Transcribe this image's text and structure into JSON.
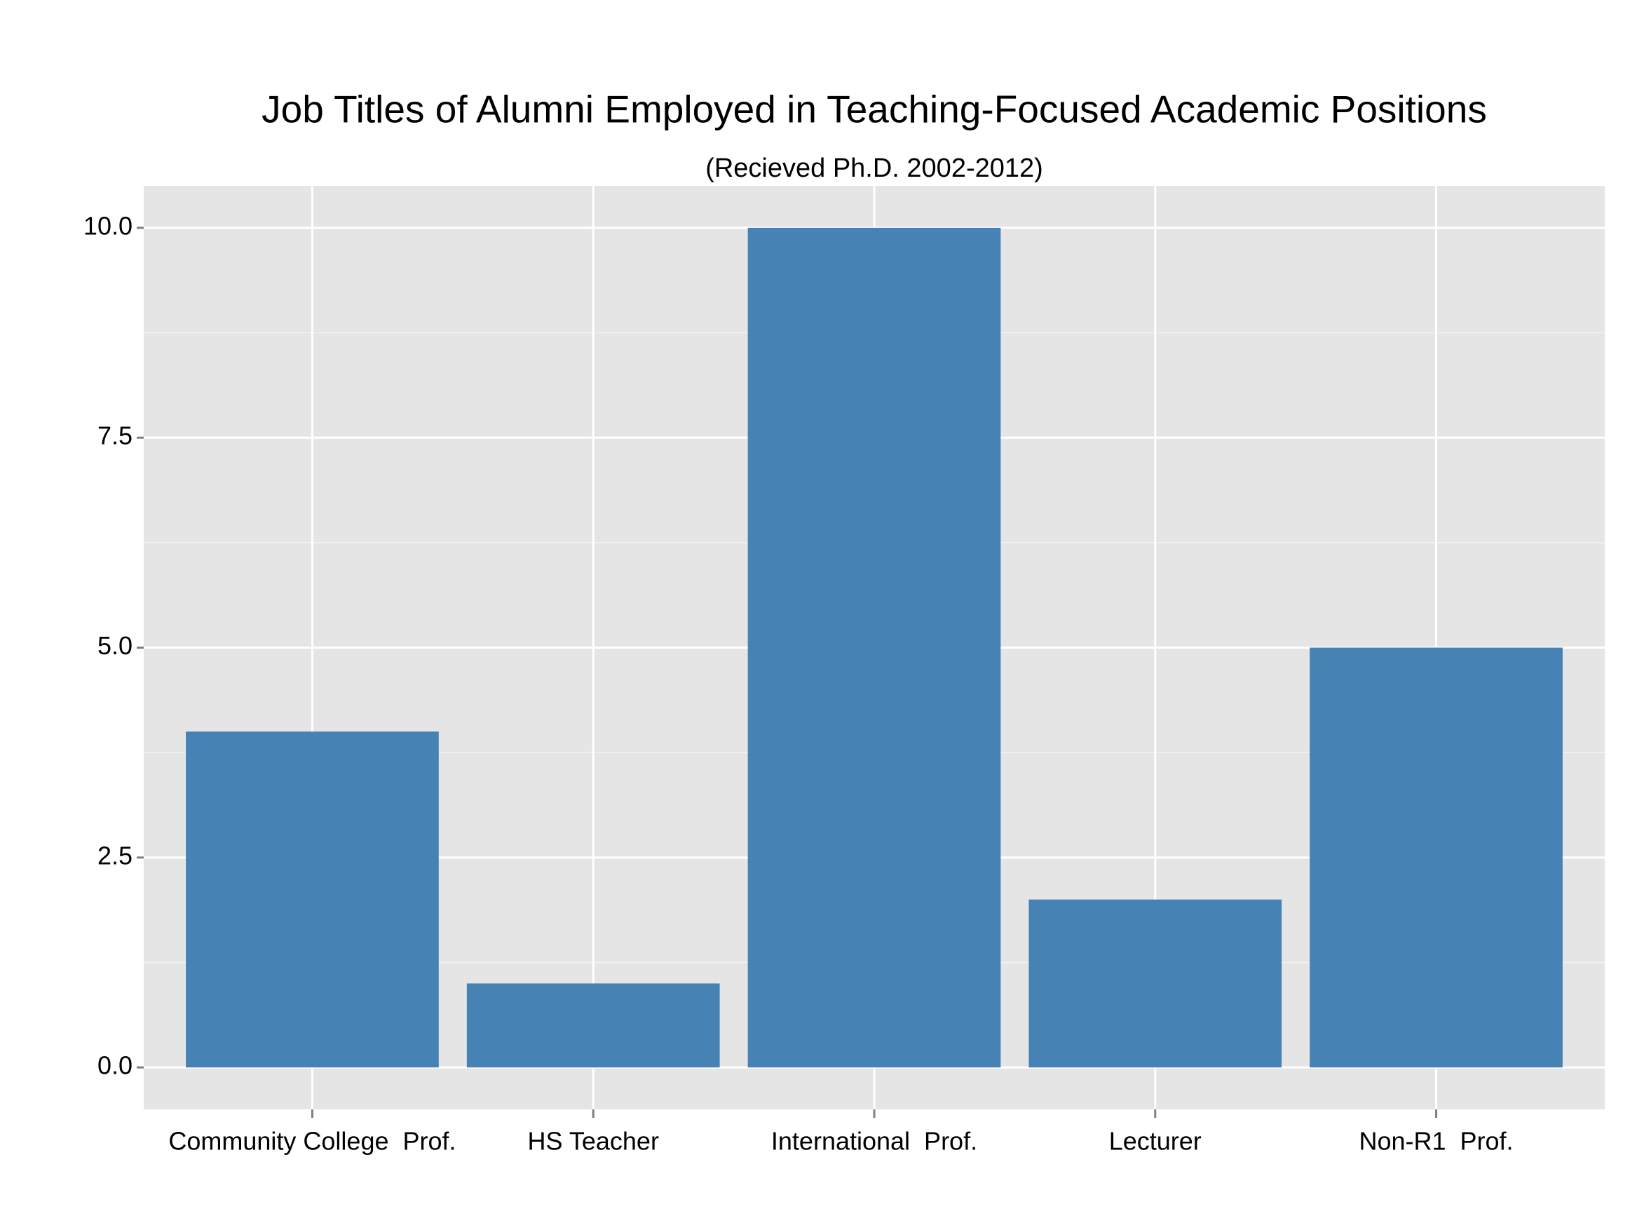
{
  "chart_data": {
    "type": "bar",
    "title": "Job Titles of Alumni Employed in Teaching-Focused Academic Positions",
    "subtitle": "(Recieved Ph.D. 2002-2012)",
    "categories": [
      "Community College  Prof.",
      "HS Teacher",
      "International  Prof.",
      "Lecturer",
      "Non-R1  Prof."
    ],
    "values": [
      4,
      1,
      10,
      2,
      5
    ],
    "color": "#4682b4",
    "ylim": [
      -0.5,
      10.5
    ],
    "yticks": [
      {
        "value": 0,
        "label": "0.0"
      },
      2.5,
      {
        "value": 5,
        "label": "5.0"
      },
      7.5,
      {
        "value": 10,
        "label": "10.0"
      }
    ],
    "grid": true
  }
}
